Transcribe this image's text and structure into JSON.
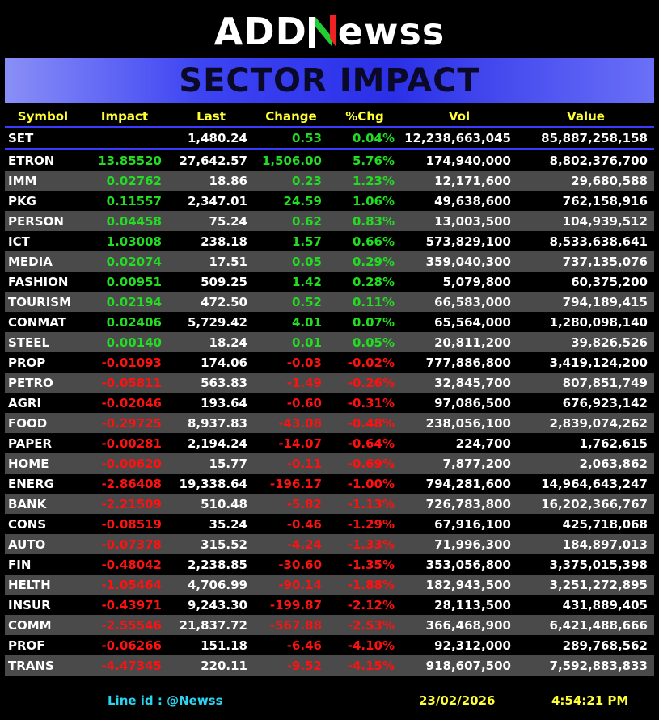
{
  "brand": {
    "prefix": "ADD",
    "n": "N",
    "suffix": "ewss",
    "accent_green": "#22cc33",
    "accent_red": "#ee2222"
  },
  "title": "SECTOR IMPACT",
  "columns": [
    "Symbol",
    "Impact",
    "Last",
    "Change",
    "%Chg",
    "Vol",
    "Value"
  ],
  "index_row": {
    "symbol": "SET",
    "impact": "",
    "last": "1,480.24",
    "change": "0.53",
    "pct": "0.04%",
    "vol": "12,238,663,045",
    "value": "85,887,258,158",
    "dir": "pos"
  },
  "rows": [
    {
      "symbol": "ETRON",
      "impact": "13.85520",
      "last": "27,642.57",
      "change": "1,506.00",
      "pct": "5.76%",
      "vol": "174,940,000",
      "value": "8,802,376,700",
      "dir": "pos"
    },
    {
      "symbol": "IMM",
      "impact": "0.02762",
      "last": "18.86",
      "change": "0.23",
      "pct": "1.23%",
      "vol": "12,171,600",
      "value": "29,680,588",
      "dir": "pos"
    },
    {
      "symbol": "PKG",
      "impact": "0.11557",
      "last": "2,347.01",
      "change": "24.59",
      "pct": "1.06%",
      "vol": "49,638,600",
      "value": "762,158,916",
      "dir": "pos"
    },
    {
      "symbol": "PERSON",
      "impact": "0.04458",
      "last": "75.24",
      "change": "0.62",
      "pct": "0.83%",
      "vol": "13,003,500",
      "value": "104,939,512",
      "dir": "pos"
    },
    {
      "symbol": "ICT",
      "impact": "1.03008",
      "last": "238.18",
      "change": "1.57",
      "pct": "0.66%",
      "vol": "573,829,100",
      "value": "8,533,638,641",
      "dir": "pos"
    },
    {
      "symbol": "MEDIA",
      "impact": "0.02074",
      "last": "17.51",
      "change": "0.05",
      "pct": "0.29%",
      "vol": "359,040,300",
      "value": "737,135,076",
      "dir": "pos"
    },
    {
      "symbol": "FASHION",
      "impact": "0.00951",
      "last": "509.25",
      "change": "1.42",
      "pct": "0.28%",
      "vol": "5,079,800",
      "value": "60,375,200",
      "dir": "pos"
    },
    {
      "symbol": "TOURISM",
      "impact": "0.02194",
      "last": "472.50",
      "change": "0.52",
      "pct": "0.11%",
      "vol": "66,583,000",
      "value": "794,189,415",
      "dir": "pos"
    },
    {
      "symbol": "CONMAT",
      "impact": "0.02406",
      "last": "5,729.42",
      "change": "4.01",
      "pct": "0.07%",
      "vol": "65,564,000",
      "value": "1,280,098,140",
      "dir": "pos"
    },
    {
      "symbol": "STEEL",
      "impact": "0.00140",
      "last": "18.24",
      "change": "0.01",
      "pct": "0.05%",
      "vol": "20,811,200",
      "value": "39,826,526",
      "dir": "pos"
    },
    {
      "symbol": "PROP",
      "impact": "-0.01093",
      "last": "174.06",
      "change": "-0.03",
      "pct": "-0.02%",
      "vol": "777,886,800",
      "value": "3,419,124,200",
      "dir": "neg"
    },
    {
      "symbol": "PETRO",
      "impact": "-0.05811",
      "last": "563.83",
      "change": "-1.49",
      "pct": "-0.26%",
      "vol": "32,845,700",
      "value": "807,851,749",
      "dir": "neg"
    },
    {
      "symbol": "AGRI",
      "impact": "-0.02046",
      "last": "193.64",
      "change": "-0.60",
      "pct": "-0.31%",
      "vol": "97,086,500",
      "value": "676,923,142",
      "dir": "neg"
    },
    {
      "symbol": "FOOD",
      "impact": "-0.29725",
      "last": "8,937.83",
      "change": "-43.08",
      "pct": "-0.48%",
      "vol": "238,056,100",
      "value": "2,839,074,262",
      "dir": "neg"
    },
    {
      "symbol": "PAPER",
      "impact": "-0.00281",
      "last": "2,194.24",
      "change": "-14.07",
      "pct": "-0.64%",
      "vol": "224,700",
      "value": "1,762,615",
      "dir": "neg"
    },
    {
      "symbol": "HOME",
      "impact": "-0.00620",
      "last": "15.77",
      "change": "-0.11",
      "pct": "-0.69%",
      "vol": "7,877,200",
      "value": "2,063,862",
      "dir": "neg"
    },
    {
      "symbol": "ENERG",
      "impact": "-2.86408",
      "last": "19,338.64",
      "change": "-196.17",
      "pct": "-1.00%",
      "vol": "794,281,600",
      "value": "14,964,643,247",
      "dir": "neg"
    },
    {
      "symbol": "BANK",
      "impact": "-2.21509",
      "last": "510.48",
      "change": "-5.82",
      "pct": "-1.13%",
      "vol": "726,783,800",
      "value": "16,202,366,767",
      "dir": "neg"
    },
    {
      "symbol": "CONS",
      "impact": "-0.08519",
      "last": "35.24",
      "change": "-0.46",
      "pct": "-1.29%",
      "vol": "67,916,100",
      "value": "425,718,068",
      "dir": "neg"
    },
    {
      "symbol": "AUTO",
      "impact": "-0.07378",
      "last": "315.52",
      "change": "-4.24",
      "pct": "-1.33%",
      "vol": "71,996,300",
      "value": "184,897,013",
      "dir": "neg"
    },
    {
      "symbol": "FIN",
      "impact": "-0.48042",
      "last": "2,238.85",
      "change": "-30.60",
      "pct": "-1.35%",
      "vol": "353,056,800",
      "value": "3,375,015,398",
      "dir": "neg"
    },
    {
      "symbol": "HELTH",
      "impact": "-1.05464",
      "last": "4,706.99",
      "change": "-90.14",
      "pct": "-1.88%",
      "vol": "182,943,500",
      "value": "3,251,272,895",
      "dir": "neg"
    },
    {
      "symbol": "INSUR",
      "impact": "-0.43971",
      "last": "9,243.30",
      "change": "-199.87",
      "pct": "-2.12%",
      "vol": "28,113,500",
      "value": "431,889,405",
      "dir": "neg"
    },
    {
      "symbol": "COMM",
      "impact": "-2.55546",
      "last": "21,837.72",
      "change": "-567.88",
      "pct": "-2.53%",
      "vol": "366,468,900",
      "value": "6,421,488,666",
      "dir": "neg"
    },
    {
      "symbol": "PROF",
      "impact": "-0.06266",
      "last": "151.18",
      "change": "-6.46",
      "pct": "-4.10%",
      "vol": "92,312,000",
      "value": "289,768,562",
      "dir": "neg"
    },
    {
      "symbol": "TRANS",
      "impact": "-4.47345",
      "last": "220.11",
      "change": "-9.52",
      "pct": "-4.15%",
      "vol": "918,607,500",
      "value": "7,592,883,833",
      "dir": "neg"
    }
  ],
  "footer": {
    "line_id": "Line id  : @Newss",
    "date": "23/02/2026",
    "time": "4:54:21 PM"
  }
}
